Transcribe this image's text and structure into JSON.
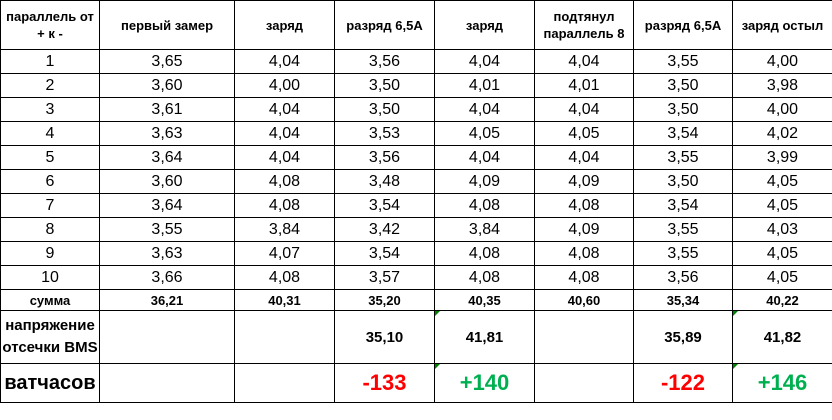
{
  "header": {
    "col1": "параллель от + к -",
    "col2": "первый замер",
    "col3": "заряд",
    "col4": "разряд 6,5А",
    "col5": "заряд",
    "col6": "подтянул параллель 8",
    "col7": "разряд 6,5А",
    "col8": "заряд остыл"
  },
  "rows": [
    [
      "1",
      "3,65",
      "4,04",
      "3,56",
      "4,04",
      "4,04",
      "3,55",
      "4,00"
    ],
    [
      "2",
      "3,60",
      "4,00",
      "3,50",
      "4,01",
      "4,01",
      "3,50",
      "3,98"
    ],
    [
      "3",
      "3,61",
      "4,04",
      "3,50",
      "4,04",
      "4,04",
      "3,50",
      "4,00"
    ],
    [
      "4",
      "3,63",
      "4,04",
      "3,53",
      "4,05",
      "4,05",
      "3,54",
      "4,02"
    ],
    [
      "5",
      "3,64",
      "4,04",
      "3,56",
      "4,04",
      "4,04",
      "3,55",
      "3,99"
    ],
    [
      "6",
      "3,60",
      "4,08",
      "3,48",
      "4,09",
      "4,09",
      "3,50",
      "4,05"
    ],
    [
      "7",
      "3,64",
      "4,08",
      "3,54",
      "4,08",
      "4,08",
      "3,54",
      "4,05"
    ],
    [
      "8",
      "3,55",
      "3,84",
      "3,42",
      "3,84",
      "4,09",
      "3,55",
      "4,03"
    ],
    [
      "9",
      "3,63",
      "4,07",
      "3,54",
      "4,08",
      "4,08",
      "3,55",
      "4,05"
    ],
    [
      "10",
      "3,66",
      "4,08",
      "3,57",
      "4,08",
      "4,08",
      "3,56",
      "4,05"
    ]
  ],
  "sum_row": [
    "сумма",
    "36,21",
    "40,31",
    "35,20",
    "40,35",
    "40,60",
    "35,34",
    "40,22"
  ],
  "bms_row": [
    "напряжение отсечки BMS",
    "",
    "",
    "35,10",
    "41,81",
    "",
    "35,89",
    "41,82"
  ],
  "wh_row": [
    "ватчасов",
    "",
    "",
    "-133",
    "+140",
    "",
    "-122",
    "+146"
  ],
  "colors": {
    "negative": "#ff0000",
    "positive": "#00b050",
    "cell_marker": "#008000"
  }
}
